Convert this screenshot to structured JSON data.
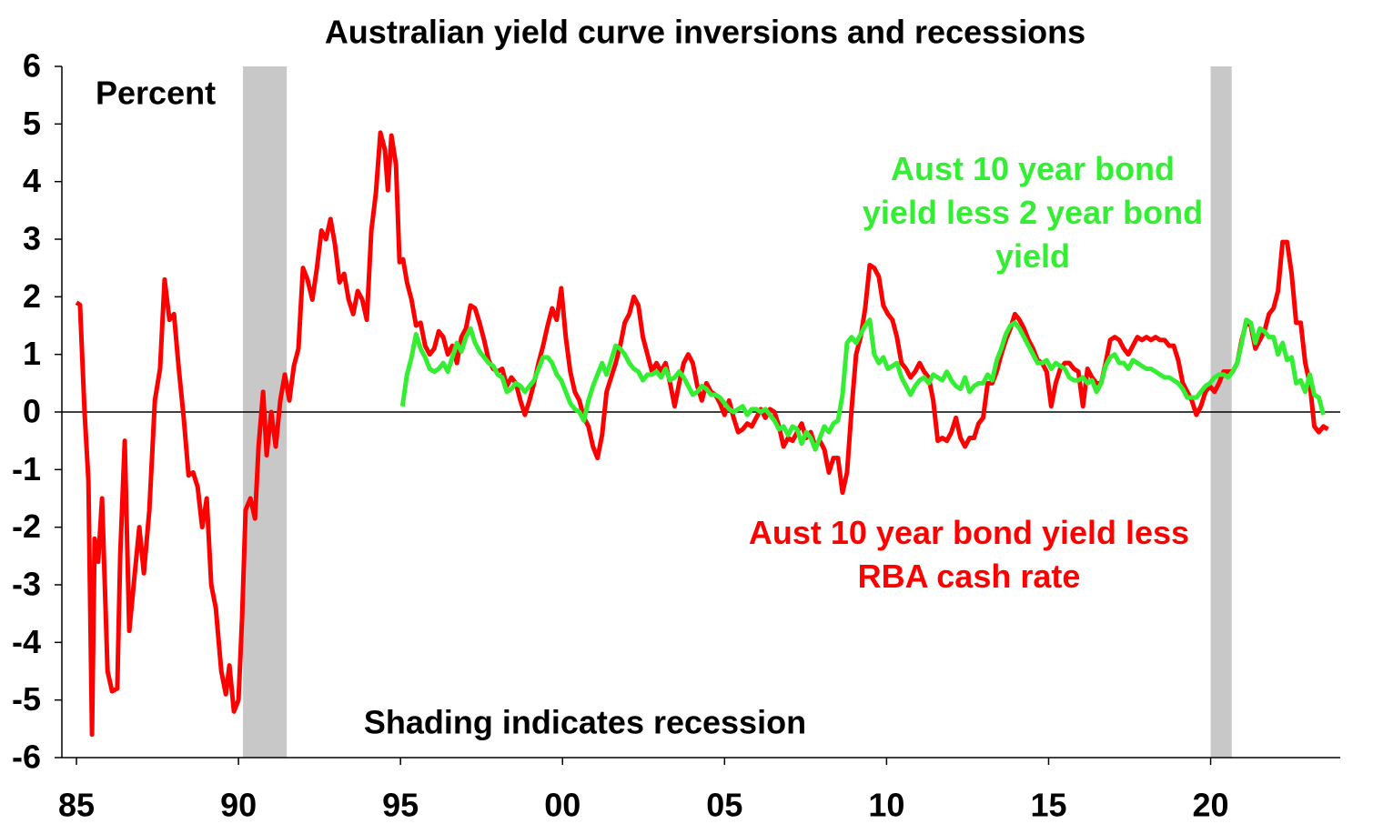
{
  "chart_data": {
    "type": "line",
    "title": "Australian yield curve inversions and recessions",
    "y_axis_label": "Percent",
    "annotation": "Shading indicates recession",
    "xlim": [
      1984.55,
      2024
    ],
    "xticks": [
      {
        "value": 1985,
        "label": "85"
      },
      {
        "value": 1990,
        "label": "90"
      },
      {
        "value": 1995,
        "label": "95"
      },
      {
        "value": 2000,
        "label": "00"
      },
      {
        "value": 2005,
        "label": "05"
      },
      {
        "value": 2010,
        "label": "10"
      },
      {
        "value": 2015,
        "label": "15"
      },
      {
        "value": 2020,
        "label": "20"
      }
    ],
    "ylim": [
      -6,
      6
    ],
    "yticks": [
      -6,
      -5,
      -4,
      -3,
      -2,
      -1,
      0,
      1,
      2,
      3,
      4,
      5,
      6
    ],
    "recession_color": "#c8c8c8",
    "recessions": [
      {
        "start": 1990.14,
        "end": 1991.49
      },
      {
        "start": 2020,
        "end": 2020.65
      }
    ],
    "series": [
      {
        "name": "Aust 10 year bond yield less RBA cash rate",
        "color": "#ff0000",
        "x": [
          1985,
          1985.11,
          1985.25,
          1985.37,
          1985.48,
          1985.56,
          1985.67,
          1985.79,
          1985.96,
          1986.1,
          1986.26,
          1986.35,
          1986.49,
          1986.63,
          1986.8,
          1986.94,
          1987.08,
          1987.25,
          1987.42,
          1987.58,
          1987.72,
          1987.87,
          1988.01,
          1988.15,
          1988.31,
          1988.46,
          1988.6,
          1988.74,
          1988.88,
          1989.02,
          1989.16,
          1989.3,
          1989.47,
          1989.61,
          1989.72,
          1989.86,
          1990,
          1990.11,
          1990.22,
          1990.37,
          1990.51,
          1990.62,
          1990.76,
          1990.87,
          1991.01,
          1991.15,
          1991.29,
          1991.43,
          1991.57,
          1991.71,
          1991.85,
          1991.99,
          1992.13,
          1992.28,
          1992.42,
          1992.56,
          1992.7,
          1992.84,
          1992.98,
          1993.12,
          1993.26,
          1993.4,
          1993.54,
          1993.68,
          1993.82,
          1993.96,
          1994.1,
          1994.24,
          1994.38,
          1994.52,
          1994.61,
          1994.72,
          1994.86,
          1994.97,
          1995.08,
          1995.2,
          1995.34,
          1995.48,
          1995.62,
          1995.76,
          1995.9,
          1996.04,
          1996.18,
          1996.32,
          1996.46,
          1996.6,
          1996.74,
          1996.88,
          1997.02,
          1997.16,
          1997.3,
          1997.44,
          1997.58,
          1997.72,
          1997.86,
          1998,
          1998.14,
          1998.28,
          1998.42,
          1998.56,
          1998.7,
          1998.84,
          1998.98,
          1999.12,
          1999.26,
          1999.4,
          1999.54,
          1999.68,
          1999.82,
          1999.96,
          2000.1,
          2000.24,
          2000.38,
          2000.52,
          2000.66,
          2000.8,
          2000.94,
          2001.08,
          2001.22,
          2001.36,
          2001.5,
          2001.64,
          2001.78,
          2001.92,
          2002.06,
          2002.2,
          2002.34,
          2002.48,
          2002.62,
          2002.76,
          2002.9,
          2003.04,
          2003.18,
          2003.32,
          2003.46,
          2003.6,
          2003.74,
          2003.88,
          2004.02,
          2004.16,
          2004.3,
          2004.44,
          2004.58,
          2004.72,
          2004.86,
          2005,
          2005.14,
          2005.28,
          2005.42,
          2005.56,
          2005.7,
          2005.84,
          2005.98,
          2006.12,
          2006.26,
          2006.4,
          2006.54,
          2006.68,
          2006.82,
          2006.96,
          2007.1,
          2007.24,
          2007.38,
          2007.52,
          2007.66,
          2007.8,
          2007.94,
          2008.08,
          2008.22,
          2008.36,
          2008.5,
          2008.64,
          2008.78,
          2008.92,
          2009.06,
          2009.2,
          2009.34,
          2009.48,
          2009.62,
          2009.76,
          2009.9,
          2010.04,
          2010.18,
          2010.32,
          2010.46,
          2010.6,
          2010.74,
          2010.88,
          2011.02,
          2011.16,
          2011.3,
          2011.44,
          2011.58,
          2011.72,
          2011.86,
          2012,
          2012.14,
          2012.28,
          2012.42,
          2012.56,
          2012.7,
          2012.84,
          2012.98,
          2013.12,
          2013.26,
          2013.4,
          2013.54,
          2013.68,
          2013.82,
          2013.96,
          2014.1,
          2014.24,
          2014.38,
          2014.52,
          2014.66,
          2014.8,
          2014.94,
          2015.08,
          2015.22,
          2015.36,
          2015.5,
          2015.64,
          2015.78,
          2015.92,
          2016.06,
          2016.2,
          2016.34,
          2016.48,
          2016.62,
          2016.76,
          2016.9,
          2017.04,
          2017.18,
          2017.32,
          2017.46,
          2017.6,
          2017.74,
          2017.88,
          2018.02,
          2018.16,
          2018.3,
          2018.44,
          2018.58,
          2018.72,
          2018.86,
          2019,
          2019.14,
          2019.28,
          2019.42,
          2019.56,
          2019.7,
          2019.84,
          2019.98,
          2020.12,
          2020.26,
          2020.4,
          2020.54,
          2020.68,
          2020.82,
          2020.96,
          2021.1,
          2021.24,
          2021.38,
          2021.52,
          2021.66,
          2021.8,
          2021.94,
          2022.08,
          2022.22,
          2022.36,
          2022.5,
          2022.64,
          2022.78,
          2022.92,
          2023.06,
          2023.2,
          2023.34,
          2023.48,
          2023.62
        ],
        "values": [
          1.9,
          1.86,
          0,
          -1.2,
          -5.6,
          -2.2,
          -2.6,
          -1.5,
          -4.5,
          -4.85,
          -4.8,
          -2.5,
          -0.5,
          -3.8,
          -2.8,
          -2,
          -2.8,
          -1.7,
          0.2,
          0.75,
          2.3,
          1.6,
          1.7,
          0.8,
          -0.1,
          -1.1,
          -1.05,
          -1.3,
          -2,
          -1.5,
          -3,
          -3.4,
          -4.5,
          -4.9,
          -4.4,
          -5.2,
          -5,
          -3.6,
          -1.7,
          -1.5,
          -1.85,
          -0.6,
          0.35,
          -0.75,
          0,
          -0.6,
          0.2,
          0.65,
          0.2,
          0.8,
          1.1,
          2.5,
          2.3,
          1.95,
          2.5,
          3.15,
          3,
          3.35,
          2.9,
          2.25,
          2.4,
          1.95,
          1.7,
          2.1,
          1.95,
          1.6,
          3.15,
          3.8,
          4.85,
          4.55,
          3.85,
          4.8,
          4.3,
          2.6,
          2.65,
          2.25,
          1.95,
          1.5,
          1.55,
          1.15,
          1.0,
          1.1,
          1.4,
          1.3,
          1.0,
          1.15,
          0.85,
          1.3,
          1.45,
          1.85,
          1.8,
          1.55,
          1.25,
          0.9,
          0.75,
          0.7,
          0.75,
          0.45,
          0.6,
          0.5,
          0.2,
          -0.05,
          0.2,
          0.5,
          0.85,
          1.15,
          1.5,
          1.8,
          1.6,
          2.15,
          1.3,
          0.7,
          0.35,
          0.2,
          -0.1,
          -0.25,
          -0.6,
          -0.8,
          -0.4,
          0.35,
          0.6,
          0.85,
          1.15,
          1.55,
          1.7,
          2.0,
          1.85,
          1.3,
          1.0,
          0.7,
          0.85,
          0.7,
          0.85,
          0.5,
          0.1,
          0.5,
          0.85,
          1.0,
          0.85,
          0.45,
          0.2,
          0.5,
          0.35,
          0.3,
          0.15,
          -0.05,
          0.2,
          -0.1,
          -0.35,
          -0.3,
          -0.2,
          -0.25,
          -0.1,
          0.05,
          -0.1,
          0.05,
          0.0,
          -0.25,
          -0.6,
          -0.45,
          -0.5,
          -0.35,
          -0.2,
          -0.45,
          -0.35,
          -0.6,
          -0.5,
          -0.65,
          -1.05,
          -0.8,
          -0.8,
          -1.4,
          -1.05,
          0.05,
          1.0,
          1.3,
          1.8,
          2.55,
          2.5,
          2.35,
          1.85,
          1.7,
          1.6,
          1.3,
          0.85,
          0.75,
          0.6,
          0.7,
          0.85,
          0.7,
          0.6,
          0.2,
          -0.5,
          -0.45,
          -0.5,
          -0.35,
          -0.1,
          -0.45,
          -0.6,
          -0.45,
          -0.45,
          -0.2,
          -0.1,
          0.5,
          0.5,
          0.7,
          1.0,
          1.25,
          1.45,
          1.7,
          1.6,
          1.45,
          1.25,
          1.1,
          0.9,
          0.85,
          0.7,
          0.1,
          0.5,
          0.75,
          0.85,
          0.85,
          0.75,
          0.7,
          0.1,
          0.75,
          0.6,
          0.5,
          0.5,
          0.85,
          1.25,
          1.3,
          1.25,
          1.1,
          1.0,
          1.15,
          1.3,
          1.25,
          1.3,
          1.25,
          1.3,
          1.25,
          1.25,
          1.15,
          1.15,
          0.9,
          0.5,
          0.35,
          0.2,
          -0.05,
          0.1,
          0.35,
          0.45,
          0.35,
          0.5,
          0.7,
          0.7,
          0.7,
          0.85,
          1.25,
          1.55,
          1.5,
          1.1,
          1.25,
          1.4,
          1.7,
          1.8,
          2.1,
          2.95,
          2.95,
          2.4,
          1.55,
          1.55,
          0.85,
          0.5,
          -0.25,
          -0.35,
          -0.25,
          -0.3
        ]
      },
      {
        "name": "Aust 10 year bond yield less 2 year bond yield",
        "color": "#33ee33",
        "x": [
          1995.06,
          1995.2,
          1995.34,
          1995.48,
          1995.62,
          1995.76,
          1995.9,
          1996.04,
          1996.18,
          1996.32,
          1996.46,
          1996.6,
          1996.74,
          1996.88,
          1997.02,
          1997.16,
          1997.3,
          1997.44,
          1997.58,
          1997.72,
          1997.86,
          1998,
          1998.14,
          1998.28,
          1998.42,
          1998.56,
          1998.7,
          1998.84,
          1998.98,
          1999.12,
          1999.26,
          1999.4,
          1999.54,
          1999.68,
          1999.82,
          1999.96,
          2000.1,
          2000.24,
          2000.38,
          2000.52,
          2000.66,
          2000.8,
          2000.94,
          2001.08,
          2001.22,
          2001.36,
          2001.5,
          2001.64,
          2001.78,
          2001.92,
          2002.06,
          2002.2,
          2002.34,
          2002.48,
          2002.62,
          2002.76,
          2002.9,
          2003.04,
          2003.18,
          2003.32,
          2003.46,
          2003.6,
          2003.74,
          2003.88,
          2004.02,
          2004.16,
          2004.3,
          2004.44,
          2004.58,
          2004.72,
          2004.86,
          2005,
          2005.14,
          2005.28,
          2005.42,
          2005.56,
          2005.7,
          2005.84,
          2005.98,
          2006.12,
          2006.26,
          2006.4,
          2006.54,
          2006.68,
          2006.82,
          2006.96,
          2007.1,
          2007.24,
          2007.38,
          2007.52,
          2007.66,
          2007.8,
          2007.94,
          2008.08,
          2008.22,
          2008.36,
          2008.5,
          2008.64,
          2008.78,
          2008.92,
          2009.06,
          2009.2,
          2009.34,
          2009.48,
          2009.62,
          2009.76,
          2009.9,
          2010.04,
          2010.18,
          2010.32,
          2010.46,
          2010.6,
          2010.74,
          2010.88,
          2011.02,
          2011.16,
          2011.3,
          2011.44,
          2011.58,
          2011.72,
          2011.86,
          2012,
          2012.14,
          2012.28,
          2012.42,
          2012.56,
          2012.7,
          2012.84,
          2012.98,
          2013.12,
          2013.26,
          2013.4,
          2013.54,
          2013.68,
          2013.82,
          2013.96,
          2014.1,
          2014.24,
          2014.38,
          2014.52,
          2014.66,
          2014.8,
          2014.94,
          2015.08,
          2015.22,
          2015.36,
          2015.5,
          2015.64,
          2015.78,
          2015.92,
          2016.06,
          2016.2,
          2016.34,
          2016.48,
          2016.62,
          2016.76,
          2016.9,
          2017.04,
          2017.18,
          2017.32,
          2017.46,
          2017.6,
          2017.74,
          2017.88,
          2018.02,
          2018.16,
          2018.3,
          2018.44,
          2018.58,
          2018.72,
          2018.86,
          2019,
          2019.14,
          2019.28,
          2019.42,
          2019.56,
          2019.7,
          2019.84,
          2019.98,
          2020.12,
          2020.26,
          2020.4,
          2020.54,
          2020.68,
          2020.82,
          2020.96,
          2021.1,
          2021.24,
          2021.38,
          2021.52,
          2021.66,
          2021.8,
          2021.94,
          2022.08,
          2022.22,
          2022.36,
          2022.5,
          2022.64,
          2022.78,
          2022.92,
          2023.06,
          2023.2,
          2023.34,
          2023.48
        ],
        "values": [
          0.1,
          0.65,
          0.95,
          1.35,
          1.1,
          0.95,
          0.75,
          0.7,
          0.75,
          0.85,
          0.7,
          0.95,
          1.2,
          1.05,
          1.3,
          1.45,
          1.2,
          1.05,
          0.95,
          0.85,
          0.8,
          0.65,
          0.6,
          0.35,
          0.4,
          0.5,
          0.45,
          0.35,
          0.45,
          0.55,
          0.75,
          0.95,
          0.95,
          0.85,
          0.65,
          0.55,
          0.35,
          0.15,
          0.05,
          0.0,
          -0.15,
          0.2,
          0.45,
          0.65,
          0.85,
          0.65,
          0.9,
          1.15,
          1.1,
          1.0,
          0.85,
          0.75,
          0.7,
          0.55,
          0.65,
          0.65,
          0.7,
          0.6,
          0.75,
          0.55,
          0.6,
          0.7,
          0.6,
          0.45,
          0.3,
          0.35,
          0.45,
          0.4,
          0.3,
          0.3,
          0.25,
          0.15,
          0.05,
          0.0,
          0.05,
          0.1,
          -0.05,
          0.05,
          0.05,
          0.0,
          0.05,
          -0.05,
          -0.15,
          -0.3,
          -0.25,
          -0.4,
          -0.25,
          -0.3,
          -0.55,
          -0.35,
          -0.45,
          -0.65,
          -0.45,
          -0.25,
          -0.35,
          -0.2,
          -0.15,
          0.3,
          1.2,
          1.3,
          1.2,
          1.35,
          1.5,
          1.6,
          1.0,
          0.85,
          0.95,
          0.75,
          0.8,
          0.85,
          0.6,
          0.45,
          0.3,
          0.45,
          0.55,
          0.6,
          0.5,
          0.65,
          0.6,
          0.55,
          0.7,
          0.55,
          0.45,
          0.4,
          0.6,
          0.35,
          0.45,
          0.5,
          0.5,
          0.65,
          0.55,
          0.9,
          1.1,
          1.35,
          1.5,
          1.55,
          1.45,
          1.3,
          1.15,
          1.0,
          0.85,
          0.85,
          0.9,
          0.75,
          0.85,
          0.8,
          0.75,
          0.6,
          0.55,
          0.55,
          0.6,
          0.5,
          0.55,
          0.35,
          0.5,
          0.8,
          0.95,
          1.0,
          0.85,
          0.85,
          0.75,
          0.9,
          0.85,
          0.8,
          0.75,
          0.75,
          0.7,
          0.65,
          0.6,
          0.6,
          0.55,
          0.5,
          0.4,
          0.25,
          0.25,
          0.25,
          0.35,
          0.45,
          0.5,
          0.6,
          0.65,
          0.65,
          0.6,
          0.7,
          0.85,
          1.2,
          1.6,
          1.55,
          1.2,
          1.45,
          1.4,
          1.3,
          1.3,
          1.0,
          1.2,
          0.9,
          0.95,
          0.5,
          0.55,
          0.35,
          0.65,
          0.3,
          0.25,
          -0.05
        ]
      }
    ]
  }
}
